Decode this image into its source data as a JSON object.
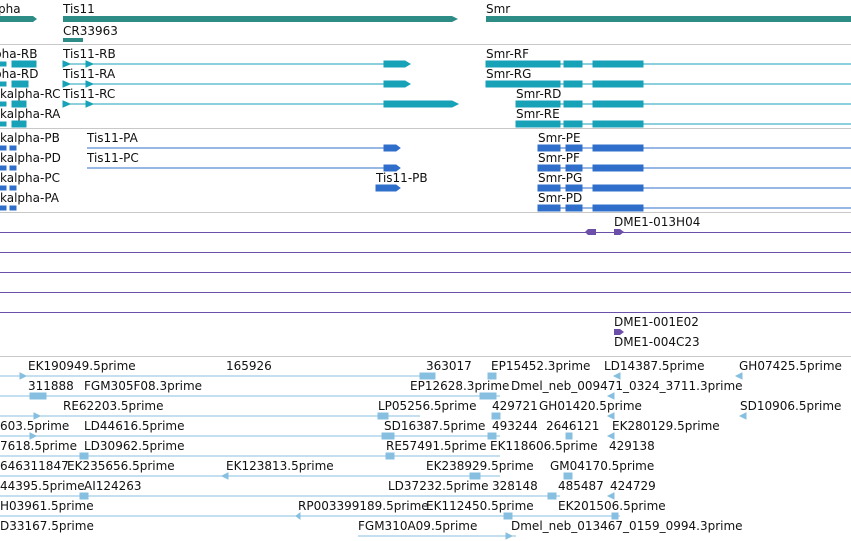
{
  "colors": {
    "gene": "#2d8d86",
    "transcript_teal": "#17a2b8",
    "transcript_blue": "#2f6fcb",
    "probe_purple": "#6b4fa8",
    "est_light_blue": "#87bfe0",
    "separator": "#c8c8c8"
  },
  "genes": {
    "items": [
      "pha",
      "Tis11",
      "Smr",
      "CR33963"
    ]
  },
  "transcripts_ra": {
    "items": [
      "pha-RB",
      "pha-RD",
      "kalpha-RC",
      "kalpha-RA",
      "Tis11-RB",
      "Tis11-RA",
      "Tis11-RC",
      "Smr-RF",
      "Smr-RG",
      "Smr-RD",
      "Smr-RE"
    ]
  },
  "transcripts_pa": {
    "items": [
      "kalpha-PB",
      "kalpha-PD",
      "kalpha-PC",
      "kalpha-PA",
      "Tis11-PA",
      "Tis11-PC",
      "Tis11-PB",
      "Smr-PE",
      "Smr-PF",
      "Smr-PG",
      "Smr-PD"
    ]
  },
  "probes": {
    "items": [
      "DME1-013H04",
      "DME1-001E02",
      "DME1-004C23"
    ]
  },
  "ests": {
    "items": [
      "EK190949.5prime",
      "165926",
      "363017",
      "EP15452.3prime",
      "LD14387.5prime",
      "GH07425.5prime",
      "311888",
      "FGM305F08.3prime",
      "EP12628.3prime",
      "Dmel_neb_009471_0324_3711.3prime",
      "RE62203.5prime",
      "LP05256.5prime",
      "429721",
      "GH01420.5prime",
      "SD10906.5prime",
      "603.5prime",
      "LD44616.5prime",
      "SD16387.5prime",
      "493244",
      "2646121",
      "EK280129.5prime",
      "7618.5prime",
      "LD30962.5prime",
      "RE57491.5prime",
      "EK118606.5prime",
      "429138",
      "646311847",
      "EK235656.5prime",
      "EK123813.5prime",
      "EK238929.5prime",
      "GM04170.5prime",
      "44395.5prime",
      "AI124263",
      "LD37232.5prime",
      "328148",
      "485487",
      "424729",
      "H03961.5prime",
      "RP003399189.5prime",
      "EK112450.5prime",
      "EK201506.5prime",
      "D33167.5prime",
      "FGM310A09.5prime",
      "Dmel_neb_013467_0159_0994.3prime"
    ]
  }
}
